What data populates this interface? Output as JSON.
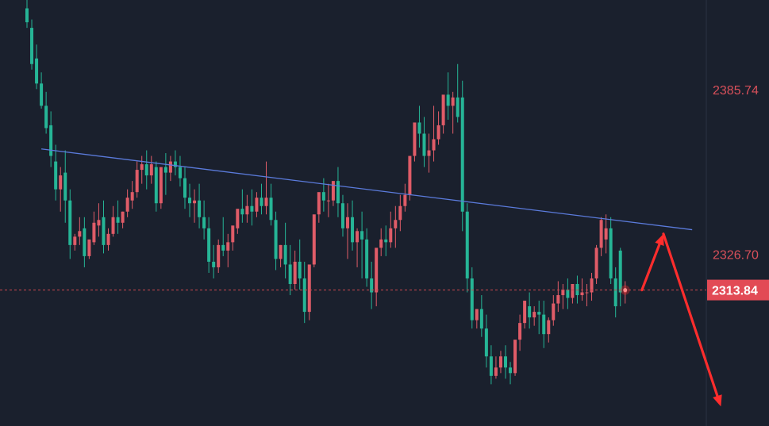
{
  "chart_data": {
    "type": "candlestick",
    "ylim": [
      2265,
      2418
    ],
    "price_axis": {
      "ticks": [
        {
          "value": 2385.74,
          "label": "2385.74"
        },
        {
          "value": 2326.7,
          "label": "2326.70"
        }
      ]
    },
    "current_price": {
      "value": 2313.84,
      "label": "2313.84"
    },
    "colors": {
      "background": "#1a202d",
      "up": "#e05c68",
      "down": "#26b596",
      "trendline": "#5b7bdc",
      "arrow": "#ff2d2d",
      "price_line": "#c9484f",
      "price_tag": "#e24a55",
      "axis_text": "#d8505a"
    },
    "trendline": {
      "from": [
        3,
        2364.5
      ],
      "to": [
        139,
        2335.5
      ]
    },
    "projection_arrows": [
      {
        "from": [
          128.5,
          2313.84
        ],
        "to": [
          133,
          2334
        ]
      },
      {
        "from": [
          133,
          2334
        ],
        "to": [
          145,
          2272
        ]
      }
    ],
    "candles": [
      [
        2415,
        2418,
        2410,
        2408
      ],
      [
        2408,
        2411,
        2395,
        2393
      ],
      [
        2397,
        2402,
        2388,
        2386
      ],
      [
        2388,
        2392,
        2380,
        2379
      ],
      [
        2380,
        2385,
        2372,
        2370
      ],
      [
        2373,
        2378,
        2362,
        2358
      ],
      [
        2360,
        2366,
        2350,
        2346
      ],
      [
        2350,
        2358,
        2355,
        2342
      ],
      [
        2356,
        2364,
        2346,
        2338
      ],
      [
        2346,
        2350,
        2330,
        2325
      ],
      [
        2330,
        2334,
        2333,
        2328
      ],
      [
        2333,
        2340,
        2335,
        2330
      ],
      [
        2336,
        2340,
        2326,
        2322
      ],
      [
        2326,
        2330,
        2332,
        2325
      ],
      [
        2331,
        2342,
        2338,
        2330
      ],
      [
        2337,
        2345,
        2339,
        2333
      ],
      [
        2340,
        2346,
        2330,
        2327
      ],
      [
        2330,
        2336,
        2334,
        2328
      ],
      [
        2334,
        2344,
        2340,
        2333
      ],
      [
        2340,
        2346,
        2338,
        2334
      ],
      [
        2338,
        2342,
        2342,
        2336
      ],
      [
        2342,
        2350,
        2347,
        2340
      ],
      [
        2346,
        2353,
        2349,
        2343
      ],
      [
        2349,
        2360,
        2357,
        2347
      ],
      [
        2357,
        2362,
        2359,
        2352
      ],
      [
        2359,
        2364,
        2355,
        2350
      ],
      [
        2355,
        2362,
        2359,
        2352
      ],
      [
        2358,
        2360,
        2345,
        2342
      ],
      [
        2345,
        2350,
        2358,
        2343
      ],
      [
        2358,
        2363,
        2356,
        2348
      ],
      [
        2356,
        2362,
        2360,
        2353
      ],
      [
        2360,
        2364,
        2358,
        2355
      ],
      [
        2358,
        2362,
        2354,
        2351
      ],
      [
        2354,
        2358,
        2347,
        2343
      ],
      [
        2347,
        2352,
        2345,
        2340
      ],
      [
        2345,
        2350,
        2346,
        2338
      ],
      [
        2346,
        2352,
        2340,
        2336
      ],
      [
        2340,
        2346,
        2336,
        2332
      ],
      [
        2336,
        2340,
        2324,
        2320
      ],
      [
        2324,
        2330,
        2322,
        2318
      ],
      [
        2322,
        2332,
        2330,
        2320
      ],
      [
        2330,
        2340,
        2328,
        2326
      ],
      [
        2328,
        2334,
        2331,
        2322
      ],
      [
        2331,
        2335,
        2337,
        2328
      ],
      [
        2336,
        2342,
        2343,
        2334
      ],
      [
        2343,
        2350,
        2341,
        2338
      ],
      [
        2341,
        2348,
        2344,
        2338
      ],
      [
        2344,
        2350,
        2342,
        2337
      ],
      [
        2342,
        2349,
        2347,
        2340
      ],
      [
        2347,
        2352,
        2344,
        2341
      ],
      [
        2344,
        2360,
        2347,
        2341
      ],
      [
        2347,
        2352,
        2339,
        2337
      ],
      [
        2339,
        2342,
        2325,
        2321
      ],
      [
        2325,
        2330,
        2330,
        2322
      ],
      [
        2330,
        2338,
        2323,
        2318
      ],
      [
        2323,
        2330,
        2316,
        2312
      ],
      [
        2316,
        2328,
        2324,
        2314
      ],
      [
        2324,
        2332,
        2318,
        2314
      ],
      [
        2318,
        2324,
        2306,
        2302
      ],
      [
        2306,
        2312,
        2323,
        2303
      ],
      [
        2323,
        2338,
        2341,
        2322
      ],
      [
        2341,
        2345,
        2349,
        2338
      ],
      [
        2349,
        2354,
        2346,
        2342
      ],
      [
        2346,
        2352,
        2346,
        2340
      ],
      [
        2346,
        2352,
        2353,
        2344
      ],
      [
        2353,
        2358,
        2345,
        2340
      ],
      [
        2345,
        2348,
        2336,
        2333
      ],
      [
        2336,
        2345,
        2340,
        2325
      ],
      [
        2340,
        2346,
        2331,
        2328
      ],
      [
        2331,
        2336,
        2335,
        2322
      ],
      [
        2335,
        2342,
        2332,
        2318
      ],
      [
        2332,
        2336,
        2318,
        2315
      ],
      [
        2318,
        2324,
        2313,
        2307
      ],
      [
        2313,
        2320,
        2329,
        2308
      ],
      [
        2329,
        2336,
        2332,
        2326
      ],
      [
        2332,
        2337,
        2331,
        2326
      ],
      [
        2331,
        2342,
        2336,
        2329
      ],
      [
        2336,
        2344,
        2339,
        2329
      ],
      [
        2339,
        2348,
        2344,
        2335
      ],
      [
        2344,
        2352,
        2348,
        2342
      ],
      [
        2348,
        2356,
        2362,
        2346
      ],
      [
        2362,
        2370,
        2374,
        2360
      ],
      [
        2374,
        2380,
        2370,
        2365
      ],
      [
        2370,
        2376,
        2362,
        2358
      ],
      [
        2362,
        2370,
        2364,
        2356
      ],
      [
        2364,
        2380,
        2368,
        2360
      ],
      [
        2368,
        2378,
        2373,
        2366
      ],
      [
        2373,
        2382,
        2384,
        2370
      ],
      [
        2384,
        2392,
        2380,
        2375
      ],
      [
        2380,
        2385,
        2383,
        2370
      ],
      [
        2383,
        2395,
        2376,
        2374
      ],
      [
        2383,
        2389,
        2342,
        2335
      ],
      [
        2342,
        2345,
        2318,
        2313
      ],
      [
        2318,
        2322,
        2303,
        2300
      ],
      [
        2303,
        2307,
        2307,
        2300
      ],
      [
        2307,
        2312,
        2300,
        2297
      ],
      [
        2300,
        2305,
        2290,
        2286
      ],
      [
        2290,
        2294,
        2283,
        2280
      ],
      [
        2283,
        2290,
        2286,
        2282
      ],
      [
        2286,
        2292,
        2290,
        2284
      ],
      [
        2290,
        2294,
        2286,
        2282
      ],
      [
        2286,
        2288,
        2284,
        2280
      ],
      [
        2284,
        2290,
        2296,
        2283
      ],
      [
        2296,
        2305,
        2302,
        2292
      ],
      [
        2302,
        2310,
        2310,
        2300
      ],
      [
        2308,
        2313,
        2304,
        2300
      ],
      [
        2304,
        2308,
        2306,
        2301
      ],
      [
        2306,
        2310,
        2305,
        2298
      ],
      [
        2305,
        2310,
        2298,
        2293
      ],
      [
        2298,
        2304,
        2303,
        2295
      ],
      [
        2303,
        2312,
        2309,
        2301
      ],
      [
        2309,
        2317,
        2312,
        2306
      ],
      [
        2312,
        2316,
        2314,
        2307
      ],
      [
        2314,
        2318,
        2311,
        2307
      ],
      [
        2311,
        2316,
        2316,
        2309
      ],
      [
        2316,
        2319,
        2312,
        2309
      ],
      [
        2312,
        2318,
        2313,
        2310
      ],
      [
        2313,
        2316,
        2313,
        2308
      ],
      [
        2313,
        2320,
        2318,
        2310
      ],
      [
        2318,
        2330,
        2329,
        2316
      ],
      [
        2329,
        2340,
        2339,
        2326
      ],
      [
        2332,
        2341,
        2336,
        2327
      ],
      [
        2336,
        2340,
        2318,
        2316
      ],
      [
        2318,
        2322,
        2308,
        2304
      ],
      [
        2328,
        2329,
        2313,
        2308
      ],
      [
        2313,
        2317,
        2314,
        2309
      ]
    ]
  }
}
